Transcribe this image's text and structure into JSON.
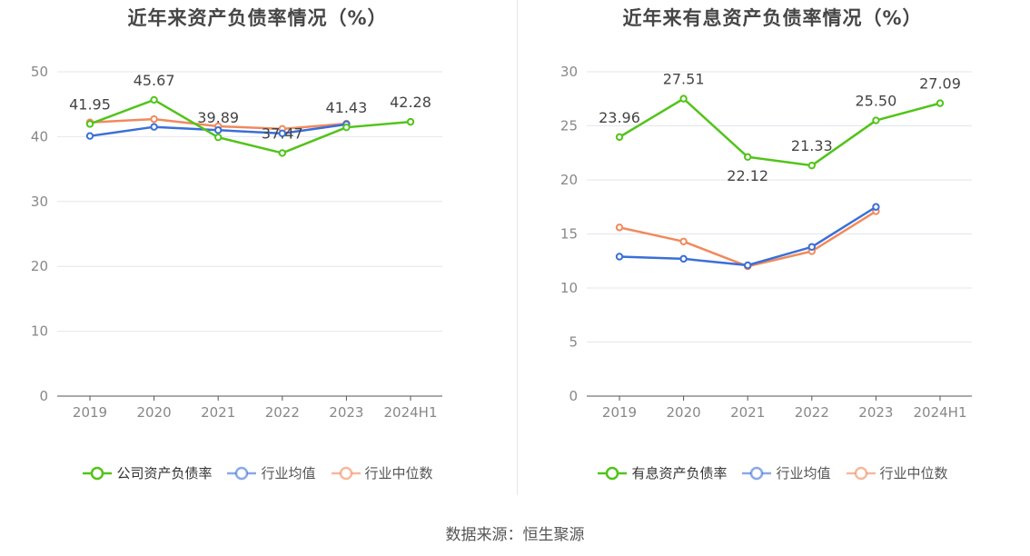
{
  "source_text": "数据来源：恒生聚源",
  "chart_data": [
    {
      "type": "line",
      "title": "近年来资产负债率情况（%）",
      "categories": [
        "2019",
        "2020",
        "2021",
        "2022",
        "2023",
        "2024H1"
      ],
      "ylim": [
        0,
        50
      ],
      "yticks": [
        "0",
        "10",
        "20",
        "30",
        "40",
        "50"
      ],
      "grid": true,
      "legend_position": "bottom",
      "series": [
        {
          "name": "公司资产负债率",
          "color": "#52c41a",
          "values": [
            41.95,
            45.67,
            39.89,
            37.47,
            41.43,
            42.28
          ],
          "labels": [
            "41.95",
            "45.67",
            "39.89",
            "37.47",
            "41.43",
            "42.28"
          ]
        },
        {
          "name": "行业均值",
          "color": "#3a6fd8",
          "values": [
            40.1,
            41.5,
            41.0,
            40.5,
            41.9,
            null
          ]
        },
        {
          "name": "行业中位数",
          "color": "#f08a5d",
          "values": [
            42.2,
            42.7,
            41.6,
            41.2,
            42.0,
            null
          ]
        }
      ]
    },
    {
      "type": "line",
      "title": "近年来有息资产负债率情况（%）",
      "categories": [
        "2019",
        "2020",
        "2021",
        "2022",
        "2023",
        "2024H1"
      ],
      "ylim": [
        0,
        30
      ],
      "yticks": [
        "0",
        "5",
        "10",
        "15",
        "20",
        "25",
        "30"
      ],
      "grid": true,
      "legend_position": "bottom",
      "series": [
        {
          "name": "有息资产负债率",
          "color": "#52c41a",
          "values": [
            23.96,
            27.51,
            22.12,
            21.33,
            25.5,
            27.09
          ],
          "labels": [
            "23.96",
            "27.51",
            "22.12",
            "21.33",
            "25.50",
            "27.09"
          ]
        },
        {
          "name": "行业均值",
          "color": "#3a6fd8",
          "values": [
            12.9,
            12.7,
            12.1,
            13.8,
            17.5,
            null
          ]
        },
        {
          "name": "行业中位数",
          "color": "#f08a5d",
          "values": [
            15.6,
            14.3,
            12.0,
            13.4,
            17.1,
            null
          ]
        }
      ]
    }
  ]
}
